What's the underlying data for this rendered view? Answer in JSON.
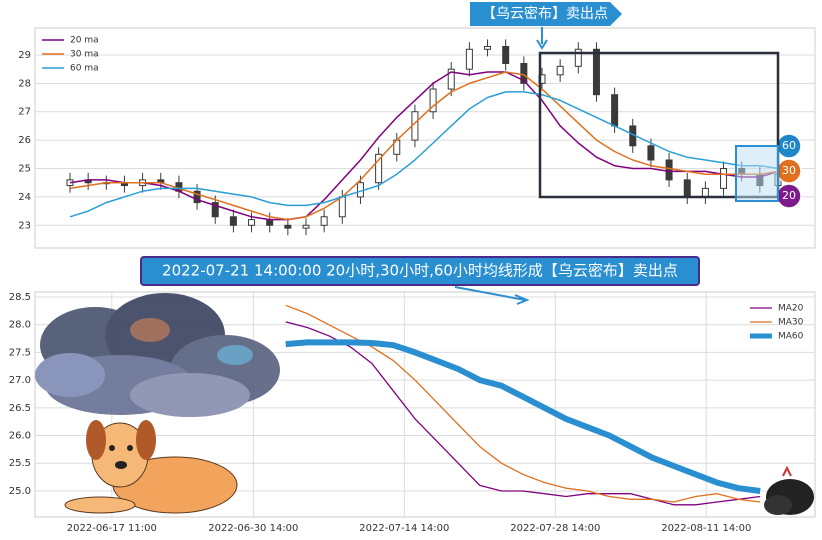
{
  "chart_data": [
    {
      "type": "candlestick",
      "annotation": "【乌云密布】卖出点",
      "candle_color": "#3a3a3a",
      "candles": {
        "open": [
          24.4,
          24.6,
          24.5,
          24.5,
          24.4,
          24.6,
          24.5,
          24.2,
          23.8,
          23.3,
          23.0,
          23.2,
          23.0,
          22.9,
          23.0,
          23.3,
          24.0,
          24.5,
          25.5,
          26.0,
          27.0,
          27.8,
          28.5,
          29.2,
          29.3,
          28.7,
          28.0,
          28.3,
          28.6,
          29.2,
          27.6,
          26.5,
          25.8,
          25.3,
          24.6,
          24.0,
          24.3,
          25.0,
          24.8,
          24.4
        ],
        "high": [
          24.85,
          24.85,
          24.75,
          24.75,
          24.85,
          24.85,
          24.75,
          24.45,
          24.05,
          23.55,
          23.45,
          23.45,
          23.25,
          23.25,
          23.55,
          24.25,
          24.75,
          25.75,
          26.25,
          27.25,
          28.05,
          28.75,
          29.45,
          29.55,
          29.55,
          28.95,
          28.55,
          28.85,
          29.45,
          29.45,
          27.85,
          26.75,
          26.05,
          25.55,
          24.85,
          24.55,
          25.25,
          25.25,
          25.05,
          25.05
        ],
        "low": [
          24.15,
          24.25,
          24.25,
          24.15,
          24.15,
          24.25,
          23.95,
          23.55,
          23.05,
          22.75,
          22.75,
          22.75,
          22.65,
          22.65,
          22.75,
          23.05,
          23.75,
          24.25,
          25.25,
          25.75,
          26.75,
          27.55,
          28.25,
          28.95,
          28.45,
          27.75,
          27.75,
          28.05,
          28.35,
          27.35,
          26.25,
          25.55,
          25.05,
          24.35,
          23.75,
          23.75,
          24.05,
          24.55,
          24.15,
          24.15
        ],
        "close": [
          24.6,
          24.5,
          24.5,
          24.4,
          24.6,
          24.5,
          24.2,
          23.8,
          23.3,
          23.0,
          23.2,
          23.0,
          22.9,
          23.0,
          23.3,
          24.0,
          24.5,
          25.5,
          26.0,
          27.0,
          27.8,
          28.5,
          29.2,
          29.3,
          28.7,
          28.0,
          28.3,
          28.6,
          29.2,
          27.6,
          26.5,
          25.8,
          25.3,
          24.6,
          24.0,
          24.3,
          25.0,
          24.8,
          24.4,
          24.8
        ]
      },
      "series": [
        {
          "name": "20 ma",
          "color": "#800080",
          "line_width": 1.5,
          "values": [
            24.5,
            24.6,
            24.6,
            24.5,
            24.5,
            24.4,
            24.2,
            23.9,
            23.7,
            23.5,
            23.3,
            23.2,
            23.2,
            23.3,
            23.9,
            24.6,
            25.3,
            26.1,
            26.8,
            27.4,
            28.0,
            28.4,
            28.3,
            28.4,
            28.4,
            28.1,
            27.4,
            26.5,
            25.9,
            25.4,
            25.1,
            25.0,
            25.0,
            24.9,
            24.9,
            24.9,
            24.8,
            24.7,
            24.7,
            24.9
          ]
        },
        {
          "name": "30 ma",
          "color": "#e0701e",
          "line_width": 1.5,
          "values": [
            24.3,
            24.4,
            24.5,
            24.5,
            24.5,
            24.5,
            24.3,
            24.1,
            23.9,
            23.7,
            23.5,
            23.3,
            23.2,
            23.3,
            23.6,
            24.0,
            24.6,
            25.3,
            26.0,
            26.6,
            27.2,
            27.7,
            28.0,
            28.2,
            28.4,
            28.3,
            27.8,
            27.2,
            26.6,
            26.0,
            25.6,
            25.3,
            25.1,
            25.0,
            24.9,
            24.8,
            24.8,
            24.8,
            24.8,
            24.9
          ]
        },
        {
          "name": "60 ma",
          "color": "#2a9fd6",
          "line_width": 1.5,
          "values": [
            23.3,
            23.5,
            23.8,
            24.0,
            24.2,
            24.3,
            24.3,
            24.3,
            24.2,
            24.1,
            24.0,
            23.8,
            23.7,
            23.7,
            23.8,
            24.0,
            24.2,
            24.4,
            24.8,
            25.3,
            25.9,
            26.5,
            27.1,
            27.5,
            27.7,
            27.7,
            27.6,
            27.4,
            27.1,
            26.8,
            26.5,
            26.2,
            25.9,
            25.6,
            25.4,
            25.3,
            25.2,
            25.1,
            25.1,
            25.0
          ]
        }
      ],
      "badges": [
        {
          "label": "60",
          "color": "#1f87c9"
        },
        {
          "label": "30",
          "color": "#e0701e"
        },
        {
          "label": "20",
          "color": "#7d1a8c"
        }
      ],
      "ylim": [
        22.2,
        29.95
      ],
      "yticks": [
        23,
        24,
        25,
        26,
        27,
        28,
        29
      ],
      "grid": true,
      "legend": "upper left"
    },
    {
      "type": "line",
      "title": "2022-07-21 14:00:00 20小时,30小时,60小时均线形成【乌云密布】卖出点",
      "x": [
        "2022-07-03 14:00",
        "2022-07-05 14:00",
        "2022-07-07 14:00",
        "2022-07-09 14:00",
        "2022-07-11 14:00",
        "2022-07-13 14:00",
        "2022-07-15 14:00",
        "2022-07-17 14:00",
        "2022-07-19 14:00",
        "2022-07-21 14:00",
        "2022-07-23 14:00",
        "2022-07-25 14:00",
        "2022-07-27 14:00",
        "2022-07-29 14:00",
        "2022-07-31 14:00",
        "2022-08-02 14:00",
        "2022-08-04 14:00",
        "2022-08-06 14:00",
        "2022-08-08 14:00",
        "2022-08-10 14:00",
        "2022-08-12 14:00",
        "2022-08-14 14:00",
        "2022-08-16 14:00"
      ],
      "series": [
        {
          "name": "MA20",
          "color": "#800080",
          "line_width": 1.3,
          "values": [
            28.05,
            27.95,
            27.8,
            27.6,
            27.3,
            26.8,
            26.3,
            25.9,
            25.5,
            25.1,
            25.0,
            25.0,
            24.95,
            24.9,
            24.95,
            24.95,
            24.95,
            24.85,
            24.75,
            24.75,
            24.8,
            24.85,
            24.9
          ]
        },
        {
          "name": "MA30",
          "color": "#e0701e",
          "line_width": 1.3,
          "values": [
            28.35,
            28.2,
            28.0,
            27.8,
            27.6,
            27.35,
            27.0,
            26.6,
            26.2,
            25.8,
            25.5,
            25.3,
            25.15,
            25.05,
            25.0,
            24.9,
            24.85,
            24.85,
            24.8,
            24.9,
            24.95,
            24.85,
            24.8
          ]
        },
        {
          "name": "MA60",
          "color": "#2a8fd0",
          "line_width": 6,
          "values": [
            27.65,
            27.68,
            27.68,
            27.68,
            27.67,
            27.63,
            27.5,
            27.35,
            27.2,
            27.0,
            26.9,
            26.7,
            26.5,
            26.3,
            26.15,
            26.0,
            25.8,
            25.6,
            25.45,
            25.3,
            25.15,
            25.05,
            25.0
          ]
        }
      ],
      "xlim": [
        "2022-06-10 08:00",
        "2022-08-21 16:00"
      ],
      "xticks": [
        "2022-06-17 11:00",
        "2022-06-30 14:00",
        "2022-07-14 14:00",
        "2022-07-28 14:00",
        "2022-08-11 14:00"
      ],
      "ylim": [
        24.53,
        28.59
      ],
      "yticks": [
        {
          "value": 25,
          "label": "25.0"
        },
        25.5,
        {
          "value": 26,
          "label": "26.0"
        },
        26.5,
        {
          "value": 27,
          "label": "27.0"
        },
        27.5,
        {
          "value": 28,
          "label": "28.0"
        },
        28.5
      ],
      "grid": true,
      "legend": "upper right"
    }
  ]
}
